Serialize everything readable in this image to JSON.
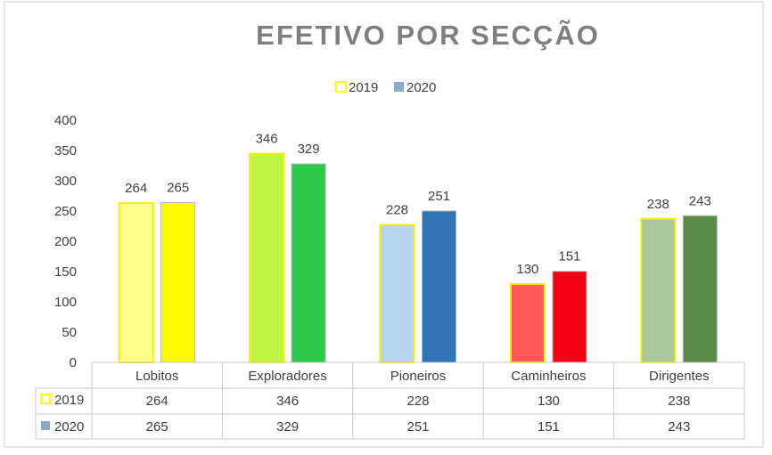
{
  "chart_data": {
    "type": "bar",
    "title": "EFETIVO POR SECÇÃO",
    "categories": [
      "Lobitos",
      "Exploradores",
      "Pioneiros",
      "Caminheiros",
      "Dirigentes"
    ],
    "series": [
      {
        "name": "2019",
        "values": [
          264,
          346,
          228,
          130,
          238
        ]
      },
      {
        "name": "2020",
        "values": [
          265,
          329,
          251,
          151,
          243
        ]
      }
    ],
    "yticks": [
      "0",
      "50",
      "100",
      "150",
      "200",
      "250",
      "300",
      "350",
      "400"
    ],
    "ylim": [
      0,
      400
    ],
    "legend_position": "top-center",
    "data_table": true,
    "grid": false,
    "colors": {
      "2019": [
        "#ffff8c",
        "#bff542",
        "#b8d4ee",
        "#ff5a5a",
        "#a9c79a"
      ],
      "2020": [
        "#fafa00",
        "#2ec84a",
        "#2f75b5",
        "#f40014",
        "#5a8a48"
      ],
      "2019_outline": "#f2f200",
      "legend_2019": "#ffff00",
      "legend_2020": "#8ea9c8",
      "title": "#7f7f7f"
    }
  }
}
